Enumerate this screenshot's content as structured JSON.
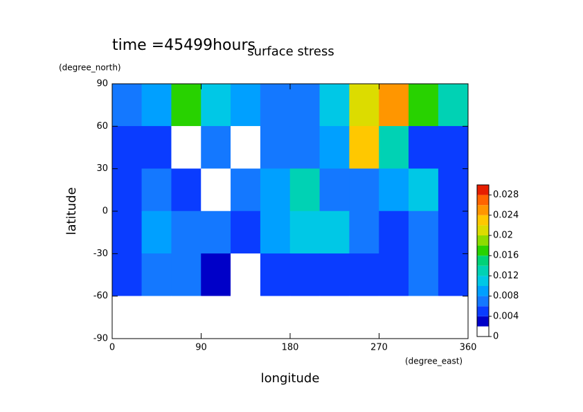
{
  "chart_data": {
    "type": "contour",
    "title": "surface stress",
    "annotation": "time =45499hours",
    "x_label": "longitude",
    "x_unit": "(degree_east)",
    "y_label": "latitude",
    "y_unit": "(degree_north)",
    "x": [
      15,
      45,
      75,
      105,
      135,
      165,
      195,
      225,
      255,
      285,
      315,
      345
    ],
    "y": [
      75,
      45,
      15,
      -15,
      -45,
      -75
    ],
    "z": [
      [
        0.006,
        0.008,
        0.016,
        0.01,
        0.008,
        0.006,
        0.006,
        0.01,
        0.02,
        0.024,
        0.016,
        0.012
      ],
      [
        0.004,
        0.004,
        0.0,
        0.006,
        0.0,
        0.006,
        0.006,
        0.008,
        0.022,
        0.012,
        0.004,
        0.004
      ],
      [
        0.004,
        0.006,
        0.004,
        0.0,
        0.006,
        0.008,
        0.012,
        0.006,
        0.006,
        0.008,
        0.01,
        0.004
      ],
      [
        0.004,
        0.008,
        0.006,
        0.006,
        0.004,
        0.008,
        0.01,
        0.01,
        0.006,
        0.004,
        0.006,
        0.004
      ],
      [
        0.004,
        0.006,
        0.006,
        0.002,
        0.0,
        0.004,
        0.004,
        0.004,
        0.004,
        0.004,
        0.006,
        0.004
      ],
      [
        0.0,
        0.0,
        0.0,
        0.0,
        0.0,
        0.0,
        0.0,
        0.0,
        0.0,
        0.0,
        0.0,
        0.0
      ]
    ],
    "xlim": [
      0,
      360
    ],
    "xticks": [
      0,
      90,
      180,
      270,
      360
    ],
    "ylim": [
      -90,
      90
    ],
    "yticks": [
      -90,
      -60,
      -30,
      0,
      30,
      60,
      90
    ],
    "levels": [
      0,
      0.002,
      0.004,
      0.006,
      0.008,
      0.01,
      0.012,
      0.014,
      0.016,
      0.018,
      0.02,
      0.022,
      0.024,
      0.026,
      0.028,
      0.03
    ],
    "colors": [
      "#ffffff",
      "#0000c8",
      "#0a3cff",
      "#1478ff",
      "#00a0ff",
      "#00c8e6",
      "#00d2b4",
      "#00d278",
      "#28d200",
      "#8cdc00",
      "#dcdc00",
      "#ffc800",
      "#ff9600",
      "#ff6400",
      "#e61e00"
    ],
    "zlim": [
      0,
      0.03
    ],
    "zticks": [
      0,
      0.004,
      0.008,
      0.012,
      0.016,
      0.02,
      0.024,
      0.028
    ]
  }
}
